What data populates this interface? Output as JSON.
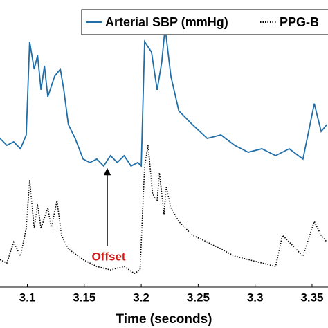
{
  "chart_data": {
    "type": "line",
    "xlabel": "Time (seconds)",
    "xlim": [
      3.076,
      3.364
    ],
    "xticks": [
      3.1,
      3.15,
      3.2,
      3.25,
      3.3,
      3.35
    ],
    "ylim": [
      0,
      100
    ],
    "annotation": "Offset",
    "series": [
      {
        "name": "Arterial SBP (mmHg)",
        "color": "#1f6ea8",
        "style": "solid",
        "x": [
          3.076,
          3.082,
          3.088,
          3.094,
          3.099,
          3.102,
          3.106,
          3.109,
          3.112,
          3.115,
          3.118,
          3.124,
          3.129,
          3.132,
          3.136,
          3.142,
          3.149,
          3.155,
          3.161,
          3.167,
          3.173,
          3.179,
          3.185,
          3.191,
          3.197,
          3.2,
          3.203,
          3.209,
          3.214,
          3.218,
          3.221,
          3.226,
          3.233,
          3.245,
          3.258,
          3.27,
          3.282,
          3.294,
          3.306,
          3.318,
          3.33,
          3.342,
          3.352,
          3.358,
          3.363
        ],
        "values": [
          51.8,
          49.4,
          50.6,
          48.2,
          53,
          85.5,
          75.9,
          80.7,
          68.7,
          77.1,
          66.3,
          73.5,
          75.9,
          68.7,
          56.6,
          51.8,
          44.6,
          43.4,
          44.6,
          42.2,
          45.8,
          43.4,
          45.8,
          42.2,
          43.4,
          42.2,
          85.5,
          81.9,
          68.7,
          78.3,
          90.4,
          73.5,
          61.4,
          56.6,
          51.8,
          53,
          49.4,
          47,
          48.2,
          45.8,
          48.2,
          44.6,
          63.9,
          54.2,
          56.6
        ]
      },
      {
        "name": "PPG-B",
        "color": "#000000",
        "style": "dotted",
        "x": [
          3.076,
          3.082,
          3.088,
          3.094,
          3.099,
          3.102,
          3.106,
          3.109,
          3.112,
          3.118,
          3.121,
          3.126,
          3.13,
          3.136,
          3.149,
          3.161,
          3.173,
          3.185,
          3.194,
          3.199,
          3.203,
          3.206,
          3.21,
          3.214,
          3.216,
          3.22,
          3.222,
          3.226,
          3.233,
          3.245,
          3.258,
          3.27,
          3.282,
          3.294,
          3.306,
          3.318,
          3.324,
          3.33,
          3.342,
          3.352,
          3.358,
          3.363
        ],
        "values": [
          9.6,
          8.4,
          15.7,
          10.8,
          20.5,
          37.3,
          20.5,
          28.9,
          20.5,
          27.7,
          20.5,
          30.1,
          18.1,
          13.3,
          9.6,
          7.2,
          6,
          7.2,
          4.8,
          6,
          42.2,
          49.4,
          32.5,
          30.1,
          39.8,
          25.3,
          34.9,
          27.7,
          22.9,
          18.1,
          15.7,
          13.3,
          10.8,
          9.6,
          8.4,
          7.2,
          18.1,
          15.7,
          10.8,
          22.9,
          18.1,
          15.7
        ]
      }
    ]
  }
}
